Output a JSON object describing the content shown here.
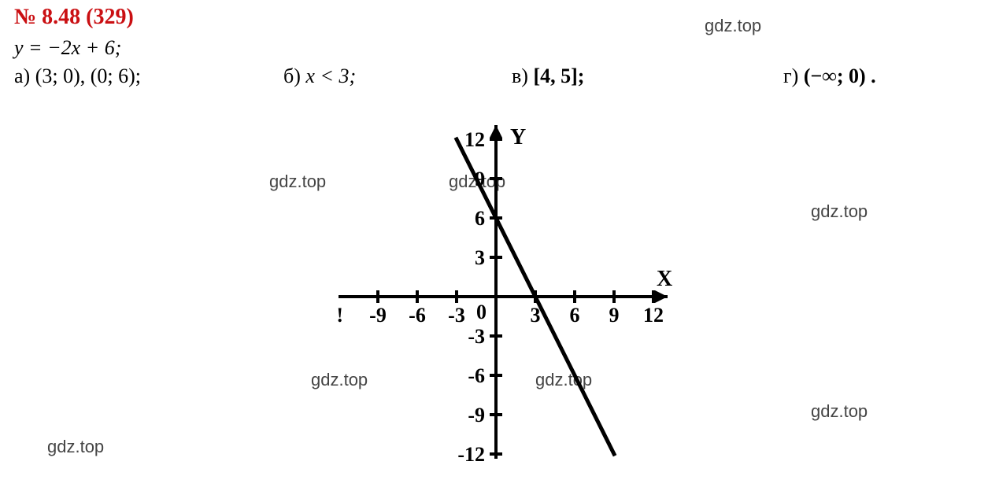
{
  "header": {
    "problem_label": "№ 8.48 (329)",
    "equation": "y = −2x + 6;"
  },
  "answers": {
    "a_label": "а)",
    "a_text": "(3; 0), (0; 6);",
    "b_label": "б)",
    "b_text": "x < 3;",
    "c_label": "в)",
    "c_text": "[4, 5];",
    "d_label": "г)",
    "d_text": "(−∞; 0) ."
  },
  "watermarks": {
    "w1": "gdz.top",
    "w2": "gdz.top",
    "w3": "gdz.top",
    "w4": "gdz.top",
    "w5": "gdz.top",
    "w6": "gdz.top",
    "w7": "gdz.top",
    "w8": "gdz.top"
  },
  "chart": {
    "type": "line",
    "background_color": "#ffffff",
    "axis_color": "#000000",
    "line_color": "#000000",
    "line_width": 5,
    "xlim": [
      -12,
      12
    ],
    "ylim": [
      -12,
      12
    ],
    "tick_step": 3,
    "x_axis_label": "X",
    "y_axis_label": "Y",
    "x_ticks": [
      -9,
      -6,
      -3,
      3,
      6,
      9,
      12
    ],
    "y_ticks": [
      -12,
      -9,
      -6,
      -3,
      3,
      6,
      9,
      12
    ],
    "function": "y=-2x+6",
    "points": [
      {
        "x": -3,
        "y": 12
      },
      {
        "x": 9,
        "y": -12
      }
    ]
  },
  "style": {
    "header_color": "#ca0f12",
    "text_color": "#000000",
    "font_family": "Times New Roman",
    "header_fontsize": 28,
    "body_fontsize": 26
  }
}
